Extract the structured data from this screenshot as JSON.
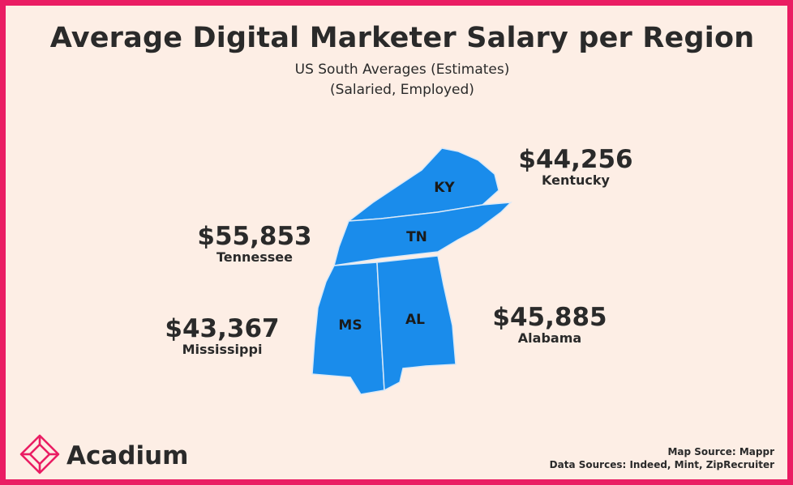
{
  "header": {
    "title": "Average Digital Marketer Salary per Region",
    "subtitle_1": "US South Averages (Estimates)",
    "subtitle_2": "(Salaried, Employed)"
  },
  "map": {
    "fill_color": "#1a8ceb",
    "border_color": "#dbe9f7",
    "states": [
      {
        "abbr": "KY",
        "name": "Kentucky",
        "salary": "$44,256"
      },
      {
        "abbr": "TN",
        "name": "Tennessee",
        "salary": "$55,853"
      },
      {
        "abbr": "MS",
        "name": "Mississippi",
        "salary": "$43,367"
      },
      {
        "abbr": "AL",
        "name": "Alabama",
        "salary": "$45,885"
      }
    ]
  },
  "brand": {
    "name": "Acadium",
    "logo_icon": "acadium-diamond-icon",
    "accent_color": "#ea1d63"
  },
  "footer": {
    "map_source": "Map Source: Mappr",
    "data_sources": "Data Sources: Indeed, Mint, ZipRecruiter"
  }
}
